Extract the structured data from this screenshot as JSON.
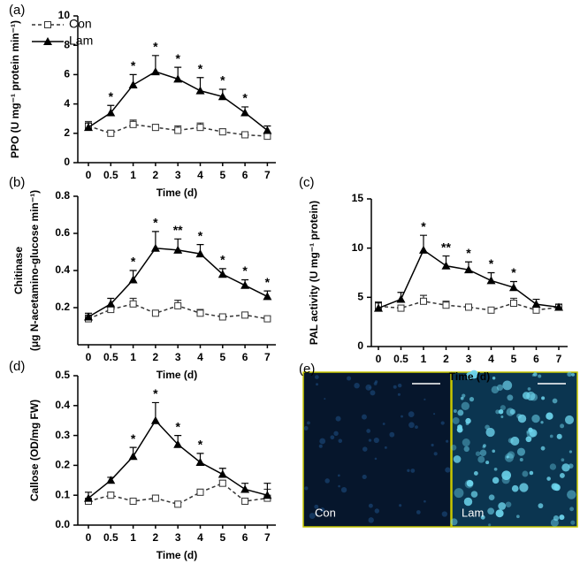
{
  "chart_data": [
    {
      "type": "line",
      "panel": "(a)",
      "ylabel": [
        "PPO (U mg⁻¹ protein min⁻¹)"
      ],
      "xlabel": "Time (d)",
      "legend": "upper left",
      "categories": [
        "0",
        "0.5",
        "1",
        "2",
        "3",
        "4",
        "5",
        "6",
        "7"
      ],
      "ylim": [
        0,
        10
      ],
      "yticks": [
        0,
        2,
        4,
        6,
        8,
        10
      ],
      "series": [
        {
          "name": "Con",
          "color": "#333333",
          "marker": "square",
          "linestyle": "dashed",
          "values": [
            2.5,
            2.0,
            2.6,
            2.4,
            2.2,
            2.4,
            2.1,
            1.9,
            1.8
          ],
          "errors": [
            0.3,
            0.2,
            0.3,
            0.2,
            0.3,
            0.3,
            0.2,
            0.1,
            0.1
          ]
        },
        {
          "name": "Lam",
          "color": "#000000",
          "marker": "triangle",
          "linestyle": "solid",
          "values": [
            2.4,
            3.4,
            5.3,
            6.2,
            5.7,
            4.9,
            4.5,
            3.4,
            2.2
          ],
          "errors": [
            0.3,
            0.5,
            0.7,
            1.1,
            0.8,
            0.9,
            0.5,
            0.4,
            0.3
          ],
          "significance": [
            null,
            "*",
            "*",
            "*",
            "*",
            "*",
            "*",
            "*",
            null
          ]
        }
      ]
    },
    {
      "type": "line",
      "panel": "(b)",
      "ylabel": [
        "Chitinase",
        "(μg N-acetamino-glucose min⁻¹)"
      ],
      "xlabel": "Time (d)",
      "categories": [
        "0",
        "0.5",
        "1",
        "2",
        "3",
        "4",
        "5",
        "6",
        "7"
      ],
      "ylim": [
        0,
        0.8
      ],
      "yticks": [
        0.2,
        0.4,
        0.6,
        0.8
      ],
      "series": [
        {
          "color": "#333333",
          "marker": "square",
          "linestyle": "dashed",
          "values": [
            0.14,
            0.19,
            0.22,
            0.17,
            0.21,
            0.17,
            0.15,
            0.16,
            0.14
          ],
          "errors": [
            0.02,
            0.02,
            0.03,
            0.01,
            0.03,
            0.02,
            0.01,
            0.01,
            0.01
          ]
        },
        {
          "color": "#000000",
          "marker": "triangle",
          "linestyle": "solid",
          "values": [
            0.15,
            0.22,
            0.35,
            0.52,
            0.51,
            0.49,
            0.38,
            0.32,
            0.26
          ],
          "errors": [
            0.02,
            0.03,
            0.05,
            0.09,
            0.06,
            0.05,
            0.03,
            0.03,
            0.03
          ],
          "significance": [
            null,
            null,
            "*",
            "*",
            "**",
            "*",
            "*",
            "*",
            "*"
          ]
        }
      ]
    },
    {
      "type": "line",
      "panel": "(c)",
      "ylabel": [
        "PAL activity (U mg⁻¹ protein)"
      ],
      "xlabel": "Time (d)",
      "categories": [
        "0",
        "0.5",
        "1",
        "2",
        "3",
        "4",
        "5",
        "6",
        "7"
      ],
      "ylim": [
        0,
        15
      ],
      "yticks": [
        0,
        5,
        10,
        15
      ],
      "series": [
        {
          "color": "#333333",
          "marker": "square",
          "linestyle": "dashed",
          "values": [
            4.1,
            3.9,
            4.6,
            4.2,
            4.0,
            3.7,
            4.4,
            3.7,
            4.0
          ],
          "errors": [
            0.4,
            0.3,
            0.6,
            0.4,
            0.3,
            0.2,
            0.5,
            0.3,
            0.2
          ]
        },
        {
          "color": "#000000",
          "marker": "triangle",
          "linestyle": "solid",
          "values": [
            3.9,
            4.8,
            9.8,
            8.2,
            7.8,
            6.7,
            6.0,
            4.3,
            4.0
          ],
          "errors": [
            0.6,
            0.7,
            1.5,
            1.0,
            0.8,
            0.8,
            0.6,
            0.5,
            0.3
          ],
          "significance": [
            null,
            null,
            "*",
            "**",
            "*",
            "*",
            "*",
            null,
            null
          ]
        }
      ]
    },
    {
      "type": "line",
      "panel": "(d)",
      "ylabel": [
        "Callose (OD/mg FW)"
      ],
      "xlabel": "Time (d)",
      "categories": [
        "0",
        "0.5",
        "1",
        "2",
        "3",
        "4",
        "5",
        "6",
        "7"
      ],
      "ylim": [
        0,
        0.5
      ],
      "yticks": [
        {
          "value": 0,
          "label": "0.0"
        },
        0.1,
        0.2,
        0.3,
        0.4,
        0.5
      ],
      "series": [
        {
          "color": "#333333",
          "marker": "square",
          "linestyle": "dashed",
          "values": [
            0.08,
            0.1,
            0.08,
            0.09,
            0.07,
            0.11,
            0.14,
            0.08,
            0.09
          ],
          "errors": [
            0.01,
            0.01,
            0.005,
            0.01,
            0.005,
            0.01,
            0.01,
            0.01,
            0.03
          ]
        },
        {
          "color": "#000000",
          "marker": "triangle",
          "linestyle": "solid",
          "values": [
            0.09,
            0.15,
            0.23,
            0.35,
            0.27,
            0.21,
            0.17,
            0.12,
            0.1
          ],
          "errors": [
            0.02,
            0.01,
            0.03,
            0.06,
            0.03,
            0.03,
            0.02,
            0.02,
            0.04
          ],
          "significance": [
            null,
            null,
            "*",
            "*",
            "*",
            "*",
            null,
            null,
            null
          ]
        }
      ]
    }
  ],
  "images": {
    "panel": "(e)",
    "labels": [
      "Con",
      "Lam"
    ]
  }
}
